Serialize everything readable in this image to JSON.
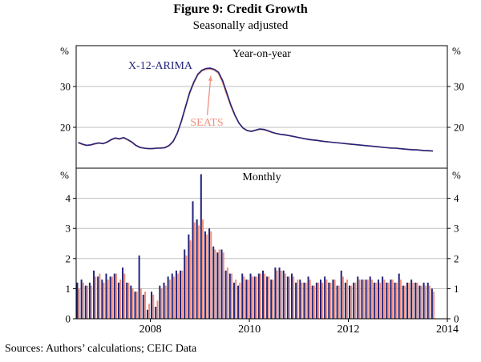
{
  "figure": {
    "title": "Figure 9: Credit Growth",
    "subtitle": "Seasonally adjusted",
    "source_note": "Sources:  Authors’ calculations; CEIC Data"
  },
  "colors": {
    "x12": "#23237a",
    "seats": "#f0907c",
    "grid": "#bfbfbf",
    "axis": "#000000"
  },
  "x_axis": {
    "range": [
      2006.5,
      2014.0
    ],
    "ticks": [
      2008,
      2010,
      2012,
      2014
    ],
    "labels": [
      "2008",
      "2010",
      "2012",
      "2014"
    ]
  },
  "chart_data": [
    {
      "type": "line",
      "panel": "top",
      "title": "Year-on-year",
      "unit": "%",
      "ylim": [
        10,
        40
      ],
      "yticks": [
        20,
        30
      ],
      "x_start": 2006.5,
      "x_step_months": 1,
      "series": [
        {
          "name": "X-12-ARIMA",
          "color_key": "x12",
          "values": [
            16.3,
            15.9,
            15.6,
            15.7,
            16.0,
            16.2,
            16.0,
            16.4,
            17.0,
            17.4,
            17.2,
            17.5,
            17.0,
            16.4,
            15.6,
            15.1,
            14.9,
            14.8,
            14.8,
            14.9,
            14.9,
            15.0,
            15.5,
            16.5,
            18.5,
            21.5,
            25.0,
            28.5,
            31.0,
            33.0,
            34.0,
            34.4,
            34.5,
            34.2,
            33.5,
            31.5,
            28.5,
            25.5,
            23.0,
            21.0,
            19.8,
            19.2,
            19.0,
            19.3,
            19.6,
            19.5,
            19.2,
            18.8,
            18.5,
            18.3,
            18.2,
            18.0,
            17.8,
            17.6,
            17.4,
            17.2,
            17.0,
            16.9,
            16.8,
            16.6,
            16.5,
            16.4,
            16.3,
            16.2,
            16.1,
            16.0,
            15.9,
            15.8,
            15.7,
            15.6,
            15.5,
            15.4,
            15.3,
            15.2,
            15.1,
            15.0,
            14.9,
            14.9,
            14.8,
            14.7,
            14.6,
            14.5,
            14.5,
            14.4,
            14.3,
            14.3,
            14.2
          ]
        },
        {
          "name": "SEATS",
          "color_key": "seats",
          "values": [
            16.2,
            15.8,
            15.6,
            15.7,
            15.9,
            16.1,
            16.0,
            16.3,
            16.9,
            17.3,
            17.1,
            17.4,
            16.9,
            16.3,
            15.5,
            15.0,
            14.9,
            14.8,
            14.8,
            14.9,
            15.0,
            15.1,
            15.6,
            16.6,
            18.6,
            21.3,
            24.8,
            28.2,
            30.8,
            32.8,
            33.8,
            34.2,
            34.3,
            34.0,
            33.2,
            31.0,
            28.0,
            25.2,
            22.8,
            21.0,
            19.8,
            19.2,
            19.1,
            19.3,
            19.5,
            19.4,
            19.1,
            18.7,
            18.5,
            18.3,
            18.1,
            18.0,
            17.8,
            17.6,
            17.4,
            17.2,
            17.1,
            16.9,
            16.8,
            16.7,
            16.5,
            16.4,
            16.3,
            16.2,
            16.1,
            16.0,
            15.9,
            15.8,
            15.7,
            15.6,
            15.5,
            15.4,
            15.3,
            15.2,
            15.1,
            15.0,
            15.0,
            14.9,
            14.8,
            14.7,
            14.6,
            14.6,
            14.5,
            14.4,
            14.3,
            14.2,
            14.2
          ]
        }
      ],
      "annotations": [
        {
          "text": "X-12-ARIMA",
          "color_key": "x12"
        },
        {
          "text": "SEATS",
          "color_key": "seats",
          "arrow": {
            "from": [
              2009.15,
              23.0
            ],
            "to": [
              2009.22,
              32.6
            ]
          }
        }
      ]
    },
    {
      "type": "bar",
      "panel": "bottom",
      "title": "Monthly",
      "unit": "%",
      "ylim": [
        0,
        5
      ],
      "yticks": [
        0,
        1,
        2,
        3,
        4
      ],
      "x_start": 2006.5,
      "x_step_months": 1,
      "series": [
        {
          "name": "X-12-ARIMA",
          "color_key": "x12",
          "values": [
            1.2,
            1.3,
            1.1,
            1.2,
            1.6,
            1.4,
            1.3,
            1.5,
            1.4,
            1.5,
            1.2,
            1.7,
            1.2,
            1.1,
            0.9,
            2.1,
            0.8,
            0.3,
            0.9,
            0.4,
            1.1,
            1.2,
            1.4,
            1.5,
            1.6,
            1.6,
            2.3,
            2.8,
            3.9,
            3.3,
            4.8,
            2.9,
            3.0,
            2.4,
            2.2,
            2.3,
            1.6,
            1.5,
            1.2,
            1.1,
            1.5,
            1.3,
            1.5,
            1.4,
            1.5,
            1.6,
            1.4,
            1.3,
            1.7,
            1.7,
            1.6,
            1.4,
            1.5,
            1.2,
            1.3,
            1.2,
            1.4,
            1.1,
            1.2,
            1.3,
            1.4,
            1.2,
            1.3,
            1.1,
            1.6,
            1.2,
            1.1,
            1.2,
            1.4,
            1.3,
            1.3,
            1.4,
            1.2,
            1.3,
            1.4,
            1.2,
            1.3,
            1.2,
            1.5,
            1.1,
            1.2,
            1.3,
            1.2,
            1.1,
            1.2,
            1.2,
            1.0
          ]
        },
        {
          "name": "SEATS",
          "color_key": "seats",
          "values": [
            1.0,
            1.2,
            1.1,
            1.1,
            1.4,
            1.5,
            1.2,
            1.3,
            1.4,
            1.5,
            1.3,
            1.5,
            1.2,
            1.0,
            0.9,
            1.0,
            0.9,
            0.5,
            0.8,
            0.6,
            1.0,
            1.1,
            1.3,
            1.4,
            1.5,
            1.6,
            2.1,
            2.6,
            3.2,
            3.1,
            3.3,
            2.8,
            2.9,
            2.3,
            2.3,
            2.2,
            1.7,
            1.5,
            1.3,
            1.2,
            1.4,
            1.3,
            1.4,
            1.4,
            1.5,
            1.5,
            1.4,
            1.3,
            1.6,
            1.6,
            1.5,
            1.4,
            1.4,
            1.3,
            1.2,
            1.2,
            1.3,
            1.1,
            1.2,
            1.2,
            1.3,
            1.2,
            1.3,
            1.1,
            1.4,
            1.3,
            1.1,
            1.2,
            1.3,
            1.3,
            1.3,
            1.3,
            1.2,
            1.2,
            1.3,
            1.2,
            1.3,
            1.2,
            1.3,
            1.1,
            1.2,
            1.2,
            1.2,
            1.1,
            1.1,
            1.1,
            0.9
          ]
        }
      ]
    }
  ]
}
